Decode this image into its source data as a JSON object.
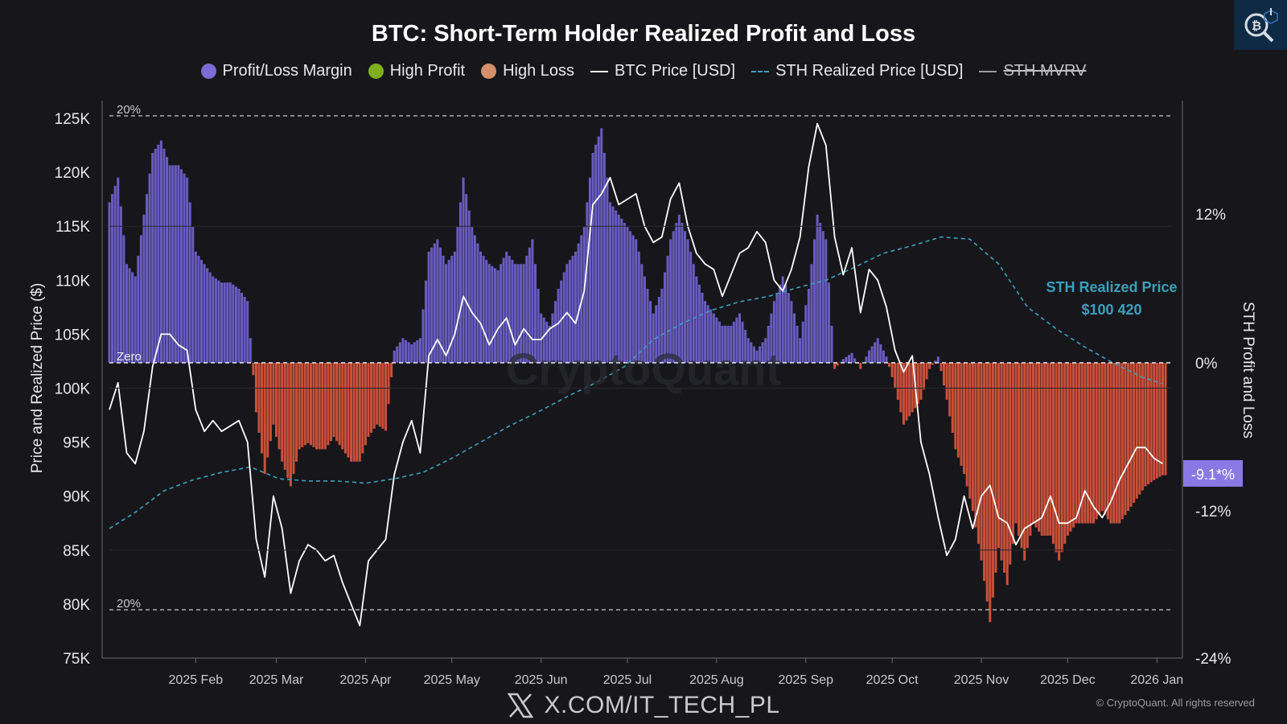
{
  "chart_data": {
    "type": "area",
    "title": "BTC: Short-Term Holder Realized Profit and Loss",
    "legend": [
      {
        "name": "Profit/Loss Margin",
        "marker": "dot",
        "color": "#7b6cd4",
        "struck": false
      },
      {
        "name": "High Profit",
        "marker": "dot",
        "color": "#7fae1f",
        "struck": false
      },
      {
        "name": "High Loss",
        "marker": "dot",
        "color": "#d4906a",
        "struck": false
      },
      {
        "name": "BTC Price [USD]",
        "marker": "line",
        "color": "#ffffff",
        "struck": false
      },
      {
        "name": "STH Realized Price [USD]",
        "marker": "dashed-line",
        "color": "#3aa0bd",
        "struck": false
      },
      {
        "name": "STH MVRV",
        "marker": "line",
        "color": "#9a9aa0",
        "struck": true
      }
    ],
    "ylabel_left": "Price and Realized Price ($)",
    "ylabel_right": "STH Profit and Loss",
    "left_axis": {
      "min": 75000,
      "max": 125000,
      "ticks": [
        "75K",
        "80K",
        "85K",
        "90K",
        "95K",
        "100K",
        "105K",
        "110K",
        "115K",
        "120K",
        "125K"
      ]
    },
    "right_axis": {
      "min": -24,
      "max": 20,
      "ticks": [
        "-24%",
        "-12%",
        "0%",
        "12%"
      ]
    },
    "x_labels": [
      "2025 Feb",
      "2025 Mar",
      "2025 Apr",
      "2025 May",
      "2025 Jun",
      "2025 Jul",
      "2025 Aug",
      "2025 Sep",
      "2025 Oct",
      "2025 Nov",
      "2025 Dec",
      "2026 Jan"
    ],
    "x_label_day": [
      31,
      59,
      90,
      120,
      151,
      181,
      212,
      243,
      273,
      304,
      334,
      365
    ],
    "day_range": [
      1,
      368
    ],
    "band_labels": {
      "top": "20%",
      "bottom": "20%",
      "zero": "Zero"
    },
    "annotations": {
      "sth_label_line1": "STH Realized Price",
      "sth_label_line2": "$100 420",
      "current_margin": "-9.1*%"
    },
    "btc_price": {
      "days": [
        1,
        4,
        7,
        10,
        13,
        16,
        19,
        22,
        25,
        28,
        31,
        34,
        37,
        40,
        43,
        46,
        49,
        52,
        55,
        58,
        61,
        64,
        67,
        70,
        73,
        76,
        79,
        82,
        85,
        88,
        91,
        94,
        97,
        100,
        103,
        106,
        109,
        112,
        115,
        118,
        121,
        124,
        127,
        130,
        133,
        136,
        139,
        142,
        145,
        148,
        151,
        154,
        157,
        160,
        163,
        166,
        169,
        172,
        175,
        178,
        181,
        184,
        187,
        190,
        193,
        196,
        199,
        202,
        205,
        208,
        211,
        214,
        217,
        220,
        223,
        226,
        229,
        232,
        235,
        238,
        241,
        244,
        247,
        250,
        253,
        256,
        259,
        262,
        265,
        268,
        271,
        274,
        277,
        280,
        283,
        286,
        289,
        292,
        295,
        298,
        301,
        304,
        307,
        310,
        313,
        316,
        319,
        322,
        325,
        328,
        331,
        334,
        337,
        340,
        343,
        346,
        349,
        352,
        355,
        358,
        361,
        364,
        367
      ],
      "values": [
        98000,
        100500,
        94000,
        93000,
        96000,
        102000,
        105000,
        105000,
        104000,
        103500,
        98000,
        96000,
        97000,
        96000,
        96500,
        97000,
        95000,
        86000,
        82500,
        90000,
        87000,
        81000,
        84000,
        85500,
        85000,
        84000,
        84500,
        82000,
        80000,
        78000,
        84000,
        85000,
        86000,
        92000,
        95000,
        97000,
        94000,
        103000,
        104500,
        103000,
        105000,
        108500,
        107000,
        106000,
        104000,
        105500,
        106500,
        104000,
        105500,
        104500,
        104500,
        105500,
        106000,
        107000,
        106000,
        109000,
        117000,
        118000,
        119500,
        117000,
        117500,
        118000,
        115000,
        113500,
        114000,
        117500,
        119000,
        115000,
        112500,
        111500,
        111000,
        108500,
        110500,
        112500,
        113000,
        114500,
        113500,
        110000,
        109000,
        111000,
        114000,
        120500,
        124500,
        122500,
        114000,
        110500,
        113000,
        107000,
        111000,
        110000,
        107500,
        103500,
        101500,
        103000,
        95000,
        92000,
        88000,
        84500,
        86000,
        90000,
        87000,
        90000,
        91000,
        88000,
        87500,
        85500,
        87000,
        87500,
        88000,
        90000,
        87500,
        87500,
        88000,
        90500,
        89000,
        88000,
        89500,
        91500,
        93000,
        94500,
        94500,
        93500,
        93000
      ],
      "comment": "approximate read from image; values estimated to nearest 500"
    },
    "sth_realized_price": {
      "days": [
        1,
        10,
        20,
        30,
        40,
        50,
        60,
        70,
        80,
        90,
        100,
        110,
        120,
        130,
        140,
        150,
        160,
        170,
        180,
        190,
        200,
        210,
        220,
        230,
        240,
        250,
        260,
        270,
        280,
        290,
        300,
        310,
        320,
        330,
        340,
        350,
        360,
        367
      ],
      "values": [
        87000,
        88500,
        90500,
        91500,
        92200,
        92700,
        91600,
        91400,
        91400,
        91200,
        91600,
        92200,
        93500,
        95000,
        96500,
        97800,
        99200,
        100500,
        102000,
        104500,
        106000,
        107200,
        108000,
        108500,
        109300,
        110000,
        111200,
        112500,
        113200,
        114000,
        113800,
        111500,
        107500,
        105500,
        103800,
        102300,
        101000,
        100420
      ]
    },
    "margin": {
      "days": [
        1,
        4,
        7,
        10,
        13,
        16,
        19,
        22,
        25,
        28,
        31,
        34,
        37,
        40,
        43,
        46,
        49,
        52,
        55,
        58,
        61,
        64,
        67,
        70,
        73,
        76,
        79,
        82,
        85,
        88,
        91,
        94,
        97,
        100,
        103,
        106,
        109,
        112,
        115,
        118,
        121,
        124,
        127,
        130,
        133,
        136,
        139,
        142,
        145,
        148,
        151,
        154,
        157,
        160,
        163,
        166,
        169,
        172,
        175,
        178,
        181,
        184,
        187,
        190,
        193,
        196,
        199,
        202,
        205,
        208,
        211,
        214,
        217,
        220,
        223,
        226,
        229,
        232,
        235,
        238,
        241,
        244,
        247,
        250,
        253,
        256,
        259,
        262,
        265,
        268,
        271,
        274,
        277,
        280,
        283,
        286,
        289,
        292,
        295,
        298,
        301,
        304,
        307,
        310,
        313,
        316,
        319,
        322,
        325,
        328,
        331,
        334,
        337,
        340,
        343,
        346,
        349,
        352,
        355,
        358,
        361,
        364,
        367
      ],
      "values": [
        13,
        15,
        8,
        7,
        12,
        17,
        18,
        16,
        16,
        15,
        9,
        8,
        7,
        6.5,
        6.5,
        6,
        5,
        -4,
        -9,
        -5,
        -8,
        -10,
        -7,
        -6.5,
        -7,
        -7,
        -6,
        -7,
        -8,
        -8,
        -6,
        -5,
        -5.5,
        1,
        2,
        1.5,
        2,
        9,
        10,
        8,
        9,
        15,
        11,
        9,
        8,
        7.5,
        9,
        8,
        8,
        10,
        4,
        3,
        6,
        8,
        9,
        11,
        17,
        19,
        13,
        12,
        11,
        10,
        7,
        4,
        6,
        10,
        12,
        10,
        7,
        5,
        4,
        3,
        3,
        4,
        2,
        1,
        2,
        5,
        7,
        5,
        2,
        6,
        12,
        10,
        -0.5,
        0.3,
        0.8,
        -0.5,
        1,
        2,
        0.5,
        -2,
        -5,
        -4,
        -3,
        -0.5,
        0.5,
        -3,
        -7,
        -9,
        -12,
        -16,
        -21,
        -15,
        -18,
        -13,
        -16,
        -13,
        -14,
        -14,
        -16,
        -14,
        -13,
        -13,
        -13,
        -12,
        -13,
        -13,
        -12,
        -11,
        -10,
        -9.5,
        -9.1
      ],
      "comment": "approximate read from image, in percent"
    }
  },
  "footer": {
    "watermark_handle": "X.COM/IT_TECH_PL",
    "copyright": "© CryptoQuant. All rights reserved"
  },
  "logo": {
    "text": "CryptoQuant"
  }
}
